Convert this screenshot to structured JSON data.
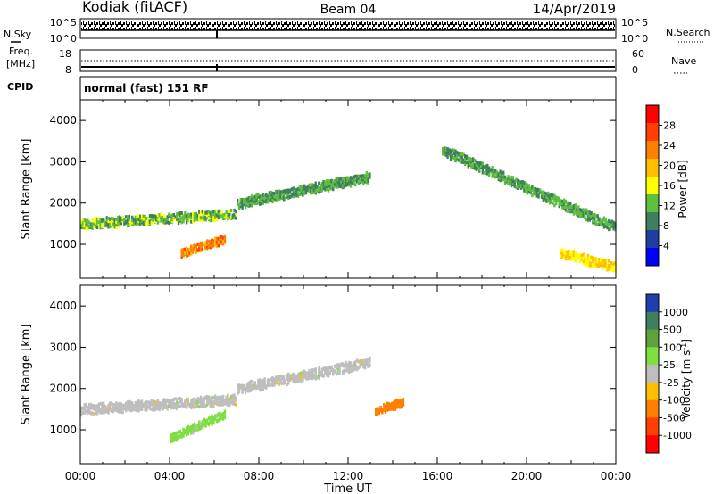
{
  "header": {
    "station": "Kodiak (fitACF)",
    "beam": "Beam 04",
    "date": "14/Apr/2019"
  },
  "status_rows": {
    "nsky": {
      "label": "N.Sky",
      "right_label": "N.Search",
      "left_ticks": [
        "10^5",
        "10^0"
      ],
      "right_ticks": [
        "10^5",
        "10^0"
      ]
    },
    "freq": {
      "label": "Freq.",
      "unit": "[MHz]",
      "right_label": "Nave",
      "left_ticks": [
        "18",
        "8"
      ],
      "right_ticks": [
        "60",
        "0"
      ]
    },
    "cpid": {
      "label": "CPID",
      "value": "normal (fast) 151 RF"
    }
  },
  "colors": {
    "power_scale": [
      "#0000ff",
      "#1f3f9f",
      "#3f7f5f",
      "#5fbf3f",
      "#ffff00",
      "#ffbf00",
      "#ff7f00",
      "#ff3f00",
      "#ff0000"
    ],
    "velocity_scale": [
      "#1f3faf",
      "#3f7f5f",
      "#5fa03f",
      "#7fdf3f",
      "#bebebe",
      "#ffbf00",
      "#ff7f00",
      "#ff3f00",
      "#ff0000"
    ],
    "ground_scatter": "#bebebe"
  },
  "chart_data": [
    {
      "type": "heatmap",
      "panel": "power",
      "ylabel": "Slant Range [km]",
      "y_ticks": [
        1000,
        2000,
        3000,
        4000
      ],
      "ylim": [
        180,
        4500
      ],
      "xlim": [
        "00:00",
        "24:00"
      ],
      "colorbar": {
        "label": "Power [dB]",
        "ticks": [
          4,
          8,
          12,
          16,
          20,
          24,
          28
        ],
        "range": [
          0,
          32
        ]
      },
      "echo_regions": [
        {
          "region": "evening band",
          "t": [
            0.0,
            7.0
          ],
          "range_km": [
            1500,
            1750
          ],
          "value": 14
        },
        {
          "region": "rising band",
          "t": [
            7.0,
            13.0
          ],
          "range_km": [
            2000,
            2650
          ],
          "value": 12
        },
        {
          "region": "intense patch",
          "t": [
            4.5,
            6.5
          ],
          "range_km": [
            800,
            1150
          ],
          "value": 26
        },
        {
          "region": "descending band",
          "t": [
            16.2,
            24.0
          ],
          "range_km": [
            3300,
            1400
          ],
          "value": 12
        },
        {
          "region": "near-range echoes",
          "t": [
            21.5,
            24.0
          ],
          "range_km": [
            800,
            450
          ],
          "value": 20
        }
      ]
    },
    {
      "type": "heatmap",
      "panel": "velocity",
      "ylabel": "Slant Range [km]",
      "xlabel": "Time UT",
      "y_ticks": [
        1000,
        2000,
        3000,
        4000
      ],
      "ylim": [
        180,
        4500
      ],
      "xlim": [
        "00:00",
        "24:00"
      ],
      "x_ticks": [
        "00:00",
        "04:00",
        "08:00",
        "12:00",
        "16:00",
        "20:00",
        "00:00"
      ],
      "colorbar": {
        "label": "Velocity [m s^-1]",
        "ticks": [
          "1000",
          "500",
          "100",
          "25",
          "-25",
          "-100",
          "-500",
          "-1000"
        ]
      },
      "echo_regions": [
        {
          "region": "ground scatter evening band",
          "t": [
            0.0,
            7.0
          ],
          "range_km": [
            1500,
            1750
          ],
          "value": 0
        },
        {
          "region": "ground scatter rising band",
          "t": [
            7.0,
            13.0
          ],
          "range_km": [
            2000,
            2650
          ],
          "value": 0
        },
        {
          "region": "negative velocity patch",
          "t": [
            13.2,
            14.5
          ],
          "range_km": [
            1450,
            1700
          ],
          "value": -300
        },
        {
          "region": "mixed velocity patch",
          "t": [
            4.0,
            6.5
          ],
          "range_km": [
            800,
            1400
          ],
          "value": 60
        }
      ]
    }
  ]
}
